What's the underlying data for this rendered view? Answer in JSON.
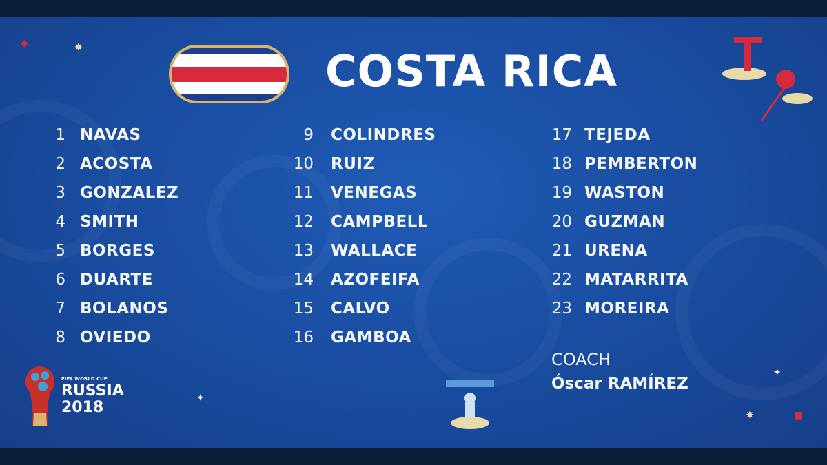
{
  "title": "COSTA RICA",
  "flag": {
    "colors": [
      "#1b3f8e",
      "#ffffff",
      "#d52b3c",
      "#ffffff",
      "#1b3f8e"
    ],
    "frame": "#d8b56a"
  },
  "players": [
    {
      "number": "1",
      "name": "NAVAS"
    },
    {
      "number": "2",
      "name": "ACOSTA"
    },
    {
      "number": "3",
      "name": "GONZALEZ"
    },
    {
      "number": "4",
      "name": "SMITH"
    },
    {
      "number": "5",
      "name": "BORGES"
    },
    {
      "number": "6",
      "name": "DUARTE"
    },
    {
      "number": "7",
      "name": "BOLANOS"
    },
    {
      "number": "8",
      "name": "OVIEDO"
    },
    {
      "number": "9",
      "name": "COLINDRES"
    },
    {
      "number": "10",
      "name": "RUIZ"
    },
    {
      "number": "11",
      "name": "VENEGAS"
    },
    {
      "number": "12",
      "name": "CAMPBELL"
    },
    {
      "number": "13",
      "name": "WALLACE"
    },
    {
      "number": "14",
      "name": "AZOFEIFA"
    },
    {
      "number": "15",
      "name": "CALVO"
    },
    {
      "number": "16",
      "name": "GAMBOA"
    },
    {
      "number": "17",
      "name": "TEJEDA"
    },
    {
      "number": "18",
      "name": "PEMBERTON"
    },
    {
      "number": "19",
      "name": "WASTON"
    },
    {
      "number": "20",
      "name": "GUZMAN"
    },
    {
      "number": "21",
      "name": "URENA"
    },
    {
      "number": "22",
      "name": "MATARRITA"
    },
    {
      "number": "23",
      "name": "MOREIRA"
    }
  ],
  "coach": {
    "label": "COACH",
    "name": "Óscar RAMÍREZ"
  },
  "logo": {
    "line1": "FIFA WORLD CUP",
    "line2": "RUSSIA",
    "line3": "2018"
  },
  "colors": {
    "background": "#1a4ea3",
    "frame": "#0b2038",
    "text": "#f3f6fb"
  }
}
